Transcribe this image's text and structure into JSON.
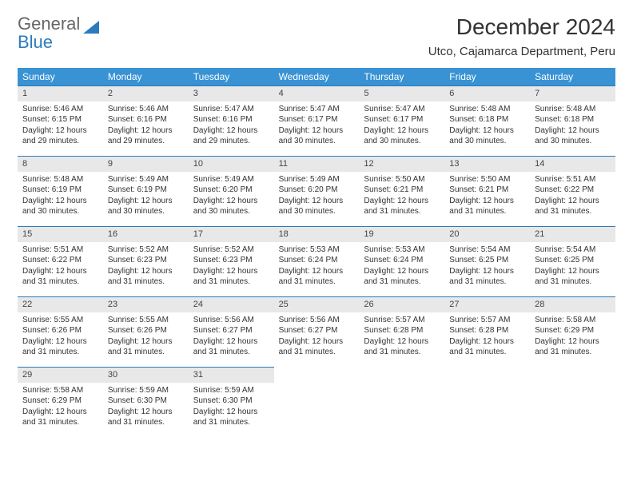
{
  "brand": {
    "part1": "General",
    "part2": "Blue"
  },
  "title": "December 2024",
  "location": "Utco, Cajamarca Department, Peru",
  "colors": {
    "header_bg": "#3892d3",
    "header_text": "#ffffff",
    "daynum_bg": "#e8e8e8",
    "daynum_border": "#2b7bbf",
    "brand_gray": "#666666",
    "brand_blue": "#2b7bbf",
    "text": "#333333"
  },
  "weekdays": [
    "Sunday",
    "Monday",
    "Tuesday",
    "Wednesday",
    "Thursday",
    "Friday",
    "Saturday"
  ],
  "days": [
    {
      "n": "1",
      "sunrise": "5:46 AM",
      "sunset": "6:15 PM",
      "daylight": "12 hours and 29 minutes."
    },
    {
      "n": "2",
      "sunrise": "5:46 AM",
      "sunset": "6:16 PM",
      "daylight": "12 hours and 29 minutes."
    },
    {
      "n": "3",
      "sunrise": "5:47 AM",
      "sunset": "6:16 PM",
      "daylight": "12 hours and 29 minutes."
    },
    {
      "n": "4",
      "sunrise": "5:47 AM",
      "sunset": "6:17 PM",
      "daylight": "12 hours and 30 minutes."
    },
    {
      "n": "5",
      "sunrise": "5:47 AM",
      "sunset": "6:17 PM",
      "daylight": "12 hours and 30 minutes."
    },
    {
      "n": "6",
      "sunrise": "5:48 AM",
      "sunset": "6:18 PM",
      "daylight": "12 hours and 30 minutes."
    },
    {
      "n": "7",
      "sunrise": "5:48 AM",
      "sunset": "6:18 PM",
      "daylight": "12 hours and 30 minutes."
    },
    {
      "n": "8",
      "sunrise": "5:48 AM",
      "sunset": "6:19 PM",
      "daylight": "12 hours and 30 minutes."
    },
    {
      "n": "9",
      "sunrise": "5:49 AM",
      "sunset": "6:19 PM",
      "daylight": "12 hours and 30 minutes."
    },
    {
      "n": "10",
      "sunrise": "5:49 AM",
      "sunset": "6:20 PM",
      "daylight": "12 hours and 30 minutes."
    },
    {
      "n": "11",
      "sunrise": "5:49 AM",
      "sunset": "6:20 PM",
      "daylight": "12 hours and 30 minutes."
    },
    {
      "n": "12",
      "sunrise": "5:50 AM",
      "sunset": "6:21 PM",
      "daylight": "12 hours and 31 minutes."
    },
    {
      "n": "13",
      "sunrise": "5:50 AM",
      "sunset": "6:21 PM",
      "daylight": "12 hours and 31 minutes."
    },
    {
      "n": "14",
      "sunrise": "5:51 AM",
      "sunset": "6:22 PM",
      "daylight": "12 hours and 31 minutes."
    },
    {
      "n": "15",
      "sunrise": "5:51 AM",
      "sunset": "6:22 PM",
      "daylight": "12 hours and 31 minutes."
    },
    {
      "n": "16",
      "sunrise": "5:52 AM",
      "sunset": "6:23 PM",
      "daylight": "12 hours and 31 minutes."
    },
    {
      "n": "17",
      "sunrise": "5:52 AM",
      "sunset": "6:23 PM",
      "daylight": "12 hours and 31 minutes."
    },
    {
      "n": "18",
      "sunrise": "5:53 AM",
      "sunset": "6:24 PM",
      "daylight": "12 hours and 31 minutes."
    },
    {
      "n": "19",
      "sunrise": "5:53 AM",
      "sunset": "6:24 PM",
      "daylight": "12 hours and 31 minutes."
    },
    {
      "n": "20",
      "sunrise": "5:54 AM",
      "sunset": "6:25 PM",
      "daylight": "12 hours and 31 minutes."
    },
    {
      "n": "21",
      "sunrise": "5:54 AM",
      "sunset": "6:25 PM",
      "daylight": "12 hours and 31 minutes."
    },
    {
      "n": "22",
      "sunrise": "5:55 AM",
      "sunset": "6:26 PM",
      "daylight": "12 hours and 31 minutes."
    },
    {
      "n": "23",
      "sunrise": "5:55 AM",
      "sunset": "6:26 PM",
      "daylight": "12 hours and 31 minutes."
    },
    {
      "n": "24",
      "sunrise": "5:56 AM",
      "sunset": "6:27 PM",
      "daylight": "12 hours and 31 minutes."
    },
    {
      "n": "25",
      "sunrise": "5:56 AM",
      "sunset": "6:27 PM",
      "daylight": "12 hours and 31 minutes."
    },
    {
      "n": "26",
      "sunrise": "5:57 AM",
      "sunset": "6:28 PM",
      "daylight": "12 hours and 31 minutes."
    },
    {
      "n": "27",
      "sunrise": "5:57 AM",
      "sunset": "6:28 PM",
      "daylight": "12 hours and 31 minutes."
    },
    {
      "n": "28",
      "sunrise": "5:58 AM",
      "sunset": "6:29 PM",
      "daylight": "12 hours and 31 minutes."
    },
    {
      "n": "29",
      "sunrise": "5:58 AM",
      "sunset": "6:29 PM",
      "daylight": "12 hours and 31 minutes."
    },
    {
      "n": "30",
      "sunrise": "5:59 AM",
      "sunset": "6:30 PM",
      "daylight": "12 hours and 31 minutes."
    },
    {
      "n": "31",
      "sunrise": "5:59 AM",
      "sunset": "6:30 PM",
      "daylight": "12 hours and 31 minutes."
    }
  ],
  "labels": {
    "sunrise": "Sunrise: ",
    "sunset": "Sunset: ",
    "daylight": "Daylight: "
  }
}
